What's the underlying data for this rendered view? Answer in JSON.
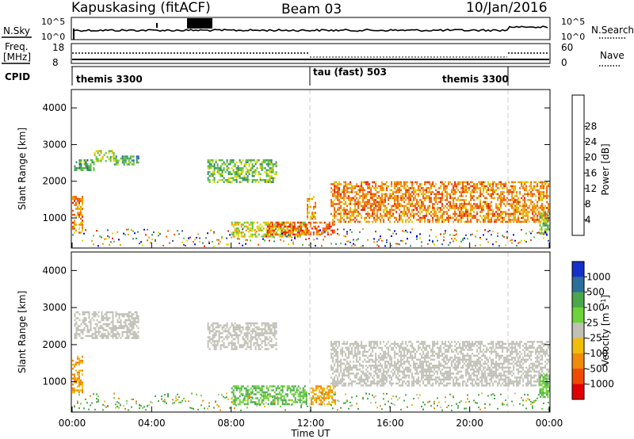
{
  "header": {
    "station": "Kapuskasing (fitACF)",
    "beam": "Beam 03",
    "date": "10/Jan/2016"
  },
  "panels": {
    "nsky_label": "N.Sky",
    "nsky_ticks": [
      "10^5",
      "10^0"
    ],
    "nsearch_label": "N.Search",
    "freq_label": "Freq.",
    "freq_unit": "[MHz]",
    "freq_ticks": [
      "18",
      "8"
    ],
    "nave_label": "Nave",
    "nave_ticks": [
      "60",
      "0"
    ],
    "cpid_label": "CPID",
    "cpid_segments": [
      "themis 3300",
      "tau (fast) 503",
      "themis 3300"
    ]
  },
  "axes": {
    "ylabel": "Slant Range [km]",
    "xlabel": "Time UT",
    "xticks": [
      "00:00",
      "04:00",
      "08:00",
      "12:00",
      "16:00",
      "20:00",
      "00:00"
    ],
    "yticks": [
      "1000",
      "2000",
      "3000",
      "4000"
    ]
  },
  "colorbars": {
    "power_label": "Power [dB]",
    "power_ticks": [
      "4",
      "8",
      "12",
      "16",
      "20",
      "24",
      "28"
    ],
    "power_colors": [
      "#0000ff",
      "#2a55b4",
      "#3d8e6a",
      "#5abe3c",
      "#d8d800",
      "#f09a00",
      "#f05a00",
      "#e61e00",
      "#d40000"
    ],
    "velocity_label": "Velocity [m s",
    "velocity_label_sup": "-1",
    "velocity_ticks": [
      "1000",
      "500",
      "100",
      "25",
      "-25",
      "-100",
      "-500",
      "-1000"
    ],
    "velocity_colors": [
      "#1430c8",
      "#2c6e9c",
      "#4aa84a",
      "#6ed23a",
      "#c0c0b6",
      "#f2bc0a",
      "#f28a0a",
      "#f04a00",
      "#e00000"
    ]
  },
  "chart_data": [
    {
      "type": "heatmap",
      "title": "Power",
      "colorbar_label": "Power [dB]",
      "x_range_hours": [
        0,
        24
      ],
      "y_range_km": [
        180,
        4500
      ],
      "regions": [
        {
          "t_start": 0.0,
          "t_end": 0.5,
          "range_lo": 600,
          "range_hi": 1600,
          "power": 24
        },
        {
          "t_start": 0.1,
          "t_end": 1.1,
          "range_lo": 2300,
          "range_hi": 2600,
          "power": 12
        },
        {
          "t_start": 1.1,
          "t_end": 2.1,
          "range_lo": 2550,
          "range_hi": 2850,
          "power": 16
        },
        {
          "t_start": 2.1,
          "t_end": 3.3,
          "range_lo": 2450,
          "range_hi": 2700,
          "power": 12
        },
        {
          "t_start": 6.8,
          "t_end": 10.3,
          "range_lo": 2000,
          "range_hi": 2600,
          "power": 14
        },
        {
          "t_start": 8.0,
          "t_end": 11.8,
          "range_lo": 500,
          "range_hi": 900,
          "power": 18
        },
        {
          "t_start": 9.8,
          "t_end": 13.2,
          "range_lo": 550,
          "range_hi": 900,
          "power": 26
        },
        {
          "t_start": 11.8,
          "t_end": 12.2,
          "range_lo": 1000,
          "range_hi": 1600,
          "power": 22
        },
        {
          "t_start": 13.0,
          "t_end": 24.0,
          "range_lo": 900,
          "range_hi": 2000,
          "power": 24
        },
        {
          "t_start": 23.5,
          "t_end": 24.0,
          "range_lo": 600,
          "range_hi": 1200,
          "power": 14
        }
      ]
    },
    {
      "type": "heatmap",
      "title": "Velocity",
      "colorbar_label": "Velocity [m s-1]",
      "x_range_hours": [
        0,
        24
      ],
      "y_range_km": [
        180,
        4500
      ],
      "regions": [
        {
          "t_start": 0.0,
          "t_end": 0.5,
          "range_lo": 700,
          "range_hi": 1700,
          "velocity": -100
        },
        {
          "t_start": 0.1,
          "t_end": 3.3,
          "range_lo": 2200,
          "range_hi": 2900,
          "velocity": 0
        },
        {
          "t_start": 6.8,
          "t_end": 10.3,
          "range_lo": 1900,
          "range_hi": 2600,
          "velocity": 0
        },
        {
          "t_start": 8.0,
          "t_end": 11.8,
          "range_lo": 400,
          "range_hi": 900,
          "velocity": 100
        },
        {
          "t_start": 12.0,
          "t_end": 13.2,
          "range_lo": 400,
          "range_hi": 900,
          "velocity": -100
        },
        {
          "t_start": 13.0,
          "t_end": 24.0,
          "range_lo": 900,
          "range_hi": 2100,
          "velocity": 0
        },
        {
          "t_start": 23.5,
          "t_end": 24.0,
          "range_lo": 600,
          "range_hi": 1200,
          "velocity": 100
        }
      ]
    }
  ]
}
